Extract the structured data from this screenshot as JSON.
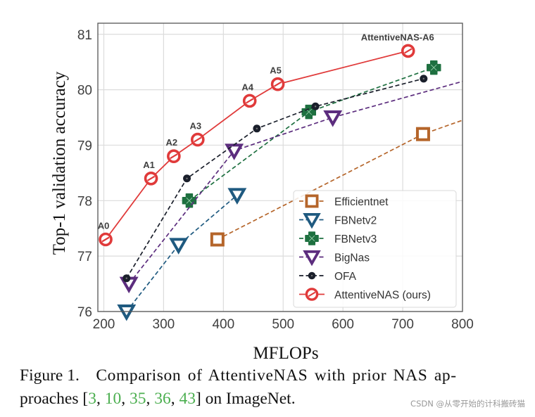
{
  "chart_data": {
    "type": "line",
    "title": "",
    "xlabel": "MFLOPs",
    "ylabel": "Top-1 validation accuracy",
    "xlim": [
      190,
      800
    ],
    "ylim": [
      76,
      81.2
    ],
    "xticks": [
      200,
      300,
      400,
      500,
      600,
      700,
      800
    ],
    "yticks": [
      76,
      77,
      78,
      79,
      80,
      81
    ],
    "grid": true,
    "legend_position": "lower-right",
    "series": [
      {
        "name": "Efficientnet",
        "color": "#b5652a",
        "marker": "square",
        "linestyle": "dashed",
        "x": [
          390,
          734,
          800
        ],
        "y": [
          77.3,
          79.2,
          79.45
        ],
        "marked": [
          true,
          true,
          false
        ]
      },
      {
        "name": "FBNetv2",
        "color": "#1f5a80",
        "marker": "triangle-down",
        "linestyle": "dashed",
        "x": [
          238,
          325,
          423
        ],
        "y": [
          76.0,
          77.2,
          78.1
        ],
        "marked": [
          true,
          true,
          true
        ]
      },
      {
        "name": "FBNetv3",
        "color": "#1e7040",
        "marker": "plus-x",
        "linestyle": "dashed",
        "x": [
          343,
          543,
          752
        ],
        "y": [
          78.0,
          79.6,
          80.4
        ],
        "marked": [
          true,
          true,
          true
        ]
      },
      {
        "name": "BigNas",
        "color": "#5c2d7e",
        "marker": "triangle-down",
        "linestyle": "dashed",
        "x": [
          242,
          418,
          583,
          800
        ],
        "y": [
          76.5,
          78.9,
          79.5,
          80.15
        ],
        "marked": [
          true,
          true,
          true,
          false
        ]
      },
      {
        "name": "OFA",
        "color": "#1a1f2b",
        "marker": "dot",
        "linestyle": "dashed",
        "x": [
          238,
          339,
          456,
          554,
          735
        ],
        "y": [
          76.6,
          78.4,
          79.3,
          79.7,
          80.2
        ],
        "marked": [
          true,
          true,
          true,
          true,
          true
        ]
      },
      {
        "name": "AttentiveNAS (ours)",
        "color": "#e03a3a",
        "marker": "circle",
        "linestyle": "solid",
        "x": [
          203,
          279,
          317,
          357,
          444,
          491,
          709
        ],
        "y": [
          77.3,
          78.4,
          78.8,
          79.1,
          79.8,
          80.1,
          80.7
        ],
        "marked": [
          true,
          true,
          true,
          true,
          true,
          true,
          true
        ],
        "point_labels": [
          "A0",
          "A1",
          "A2",
          "A3",
          "A4",
          "A5",
          "AttentiveNAS-A6"
        ]
      }
    ]
  },
  "caption": {
    "prefix": "Figure 1.",
    "text1": "Comparison of AttentiveNAS with prior NAS ap-",
    "text2_start": "proaches [",
    "citations": [
      "3",
      "10",
      "35",
      "36",
      "43"
    ],
    "text2_end": "] on ImageNet."
  },
  "watermark": "CSDN @从零开始的计科搬砖猫"
}
